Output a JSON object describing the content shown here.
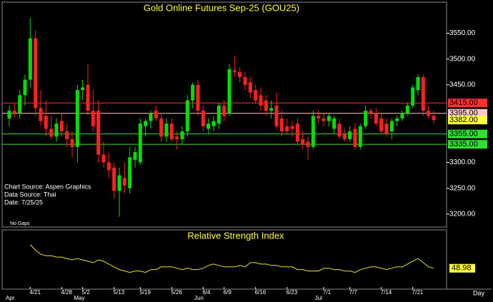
{
  "chart_data": {
    "type": "candlestick",
    "title": "Gold Online Futures Sep-25 (GOU25)",
    "notes": [
      "Chart Source: Aspen Graphics",
      "Data Source: Thai",
      "Date:   7/25/25"
    ],
    "gap_note": "No Gaps",
    "categories": [
      null,
      null,
      null,
      null,
      "4/21",
      null,
      null,
      null,
      null,
      null,
      "4/28",
      null,
      null,
      null,
      "5/2",
      null,
      null,
      null,
      null,
      null,
      "5/13",
      null,
      null,
      null,
      null,
      "5/19",
      null,
      null,
      null,
      null,
      null,
      "5/26",
      null,
      null,
      null,
      null,
      null,
      "6/4",
      null,
      null,
      null,
      "6/9",
      null,
      null,
      null,
      null,
      null,
      "6/16",
      null,
      null,
      null,
      null,
      null,
      "6/23",
      null,
      null,
      null,
      null,
      null,
      null,
      "7/1",
      null,
      null,
      null,
      null,
      "7/7",
      null,
      null,
      null,
      null,
      null,
      "7/14",
      null,
      null,
      null,
      null,
      null,
      "7/21",
      null,
      null,
      null,
      null
    ],
    "months": [
      {
        "index": 0,
        "label": "Apr"
      },
      {
        "index": 13,
        "label": "May"
      },
      {
        "index": 36,
        "label": "Jun"
      },
      {
        "index": 59,
        "label": "Jul"
      }
    ],
    "x_unit_label": "Day",
    "open": [
      3385,
      3400,
      3395,
      3430,
      3460,
      3540,
      3405,
      3390,
      3365,
      3350,
      3380,
      3360,
      3345,
      3330,
      3440,
      3450,
      3400,
      3400,
      3315,
      3300,
      3290,
      3245,
      3270,
      3250,
      3305,
      3300,
      3370,
      3380,
      3400,
      3385,
      3350,
      3375,
      3350,
      3345,
      3360,
      3420,
      3450,
      3400,
      3365,
      3370,
      3375,
      3410,
      3395,
      3478,
      3475,
      3465,
      3455,
      3440,
      3430,
      3420,
      3400,
      3410,
      3385,
      3370,
      3370,
      3375,
      3345,
      3340,
      3330,
      3390,
      3385,
      3380,
      3365,
      3375,
      3355,
      3345,
      3365,
      3330,
      3370,
      3400,
      3395,
      3385,
      3375,
      3360,
      3380,
      3385,
      3395,
      3410,
      3440,
      3465,
      3400,
      3390
    ],
    "high": [
      3410,
      3415,
      3440,
      3470,
      3580,
      3555,
      3440,
      3420,
      3390,
      3385,
      3395,
      3375,
      3360,
      3450,
      3460,
      3490,
      3440,
      3420,
      3340,
      3320,
      3300,
      3290,
      3300,
      3330,
      3330,
      3385,
      3385,
      3400,
      3410,
      3395,
      3385,
      3385,
      3360,
      3370,
      3430,
      3455,
      3460,
      3410,
      3385,
      3390,
      3415,
      3420,
      3490,
      3505,
      3485,
      3475,
      3465,
      3450,
      3445,
      3430,
      3420,
      3435,
      3400,
      3385,
      3380,
      3385,
      3360,
      3350,
      3400,
      3400,
      3395,
      3395,
      3390,
      3385,
      3365,
      3370,
      3375,
      3375,
      3410,
      3405,
      3405,
      3395,
      3385,
      3385,
      3390,
      3400,
      3415,
      3450,
      3470,
      3470,
      3410,
      3400
    ],
    "low": [
      3370,
      3385,
      3385,
      3410,
      3445,
      3390,
      3370,
      3350,
      3345,
      3340,
      3350,
      3330,
      3310,
      3300,
      3420,
      3390,
      3360,
      3300,
      3290,
      3270,
      3230,
      3195,
      3240,
      3240,
      3290,
      3295,
      3350,
      3365,
      3380,
      3340,
      3340,
      3340,
      3325,
      3335,
      3350,
      3405,
      3390,
      3360,
      3355,
      3360,
      3365,
      3380,
      3390,
      3465,
      3455,
      3440,
      3425,
      3415,
      3400,
      3390,
      3385,
      3365,
      3350,
      3355,
      3350,
      3335,
      3325,
      3305,
      3325,
      3375,
      3370,
      3370,
      3355,
      3345,
      3340,
      3340,
      3325,
      3325,
      3365,
      3385,
      3370,
      3355,
      3350,
      3345,
      3370,
      3380,
      3390,
      3405,
      3430,
      3390,
      3385,
      3375
    ],
    "close": [
      3400,
      3395,
      3430,
      3460,
      3540,
      3405,
      3380,
      3365,
      3350,
      3375,
      3360,
      3345,
      3330,
      3440,
      3445,
      3400,
      3370,
      3315,
      3300,
      3285,
      3245,
      3275,
      3255,
      3310,
      3320,
      3375,
      3380,
      3395,
      3385,
      3350,
      3375,
      3345,
      3345,
      3360,
      3420,
      3450,
      3400,
      3370,
      3375,
      3380,
      3410,
      3390,
      3480,
      3475,
      3465,
      3450,
      3435,
      3420,
      3410,
      3400,
      3405,
      3370,
      3360,
      3360,
      3365,
      3340,
      3335,
      3330,
      3390,
      3385,
      3380,
      3390,
      3385,
      3350,
      3345,
      3360,
      3330,
      3370,
      3400,
      3395,
      3375,
      3360,
      3355,
      3380,
      3385,
      3395,
      3410,
      3445,
      3465,
      3400,
      3390,
      3382
    ],
    "last_label": "3382.00",
    "up_color": "#00e000",
    "down_color": "#ff2020",
    "ylim": [
      3175,
      3610
    ],
    "yticks": [
      {
        "value": 3200,
        "label": "3200.00"
      },
      {
        "value": 3250,
        "label": "3250.00"
      },
      {
        "value": 3300,
        "label": "3300.00"
      },
      {
        "value": 3450,
        "label": "3450.00"
      },
      {
        "value": 3500,
        "label": "3500.00"
      },
      {
        "value": 3550,
        "label": "3550.00"
      }
    ],
    "levels": [
      {
        "value": 3415,
        "label": "3415.00",
        "color": "#ff3030"
      },
      {
        "value": 3395,
        "label": "3395.00",
        "color": "#ffc8c8"
      },
      {
        "value": 3355,
        "label": "3355.00",
        "color": "#30e030"
      },
      {
        "value": 3335,
        "label": "3335.00",
        "color": "#30e030"
      }
    ],
    "rsi": {
      "title": "Relative Strength Index",
      "color": "#e8e020",
      "ylim": [
        35,
        75
      ],
      "values": [
        null,
        null,
        null,
        null,
        66,
        62,
        59,
        58,
        58,
        57,
        57,
        56,
        55,
        56,
        55,
        54,
        53,
        55,
        54,
        52,
        50,
        48,
        47,
        46,
        47,
        47,
        46,
        48,
        48,
        50,
        50,
        50,
        49,
        48,
        49,
        48,
        48,
        49,
        51,
        52,
        51,
        50,
        50,
        50,
        51,
        50,
        53,
        53,
        52,
        52,
        51,
        51,
        50,
        50,
        50,
        48,
        48,
        47,
        47,
        47,
        49,
        49,
        48,
        48,
        47,
        47,
        46,
        48,
        49,
        50,
        50,
        49,
        48,
        49,
        50,
        50,
        52,
        54,
        56,
        53,
        50,
        48.98
      ]
    }
  }
}
